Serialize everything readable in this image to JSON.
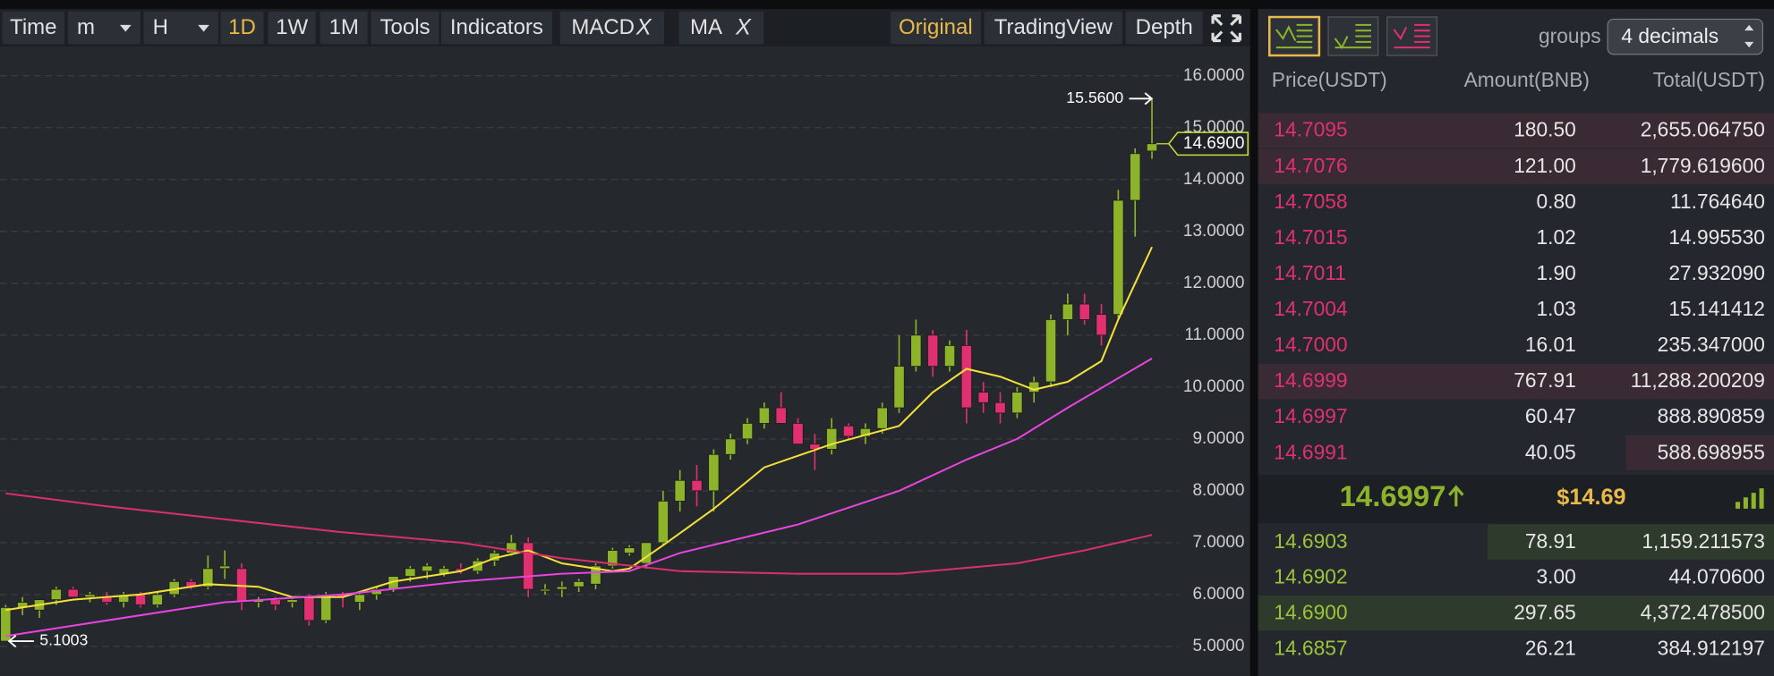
{
  "toolbar": {
    "buttons": [
      "Time",
      "m",
      "H",
      "1D",
      "1W",
      "1M",
      "Tools",
      "Indicators"
    ],
    "indicators": [
      "MACD",
      "MA"
    ],
    "close_mark": "X",
    "views": [
      "Original",
      "TradingView",
      "Depth"
    ]
  },
  "chart_data": {
    "type": "candlestick",
    "up_color": "#8db32b",
    "down_color": "#e0306f",
    "ohlc": [
      [
        5.1,
        5.8,
        5.1,
        5.75
      ],
      [
        5.75,
        5.95,
        5.6,
        5.85
      ],
      [
        5.7,
        5.9,
        5.55,
        5.9
      ],
      [
        5.9,
        6.15,
        5.8,
        6.1
      ],
      [
        6.1,
        6.15,
        5.95,
        5.95
      ],
      [
        5.95,
        6.05,
        5.85,
        6.0
      ],
      [
        5.95,
        6.05,
        5.8,
        5.85
      ],
      [
        5.85,
        6.05,
        5.75,
        6.0
      ],
      [
        6.0,
        6.05,
        5.75,
        5.8
      ],
      [
        5.8,
        6.05,
        5.75,
        6.0
      ],
      [
        6.0,
        6.3,
        5.95,
        6.25
      ],
      [
        6.25,
        6.3,
        6.1,
        6.15
      ],
      [
        6.15,
        6.75,
        6.1,
        6.5
      ],
      [
        6.5,
        6.85,
        6.3,
        6.55
      ],
      [
        6.5,
        6.6,
        5.7,
        5.85
      ],
      [
        5.85,
        5.95,
        5.75,
        5.9
      ],
      [
        5.9,
        5.95,
        5.7,
        5.8
      ],
      [
        5.85,
        5.95,
        5.75,
        5.9
      ],
      [
        5.95,
        6.0,
        5.4,
        5.5
      ],
      [
        5.5,
        6.05,
        5.45,
        6.0
      ],
      [
        6.0,
        6.05,
        5.75,
        5.95
      ],
      [
        5.85,
        6.05,
        5.7,
        6.0
      ],
      [
        6.0,
        6.15,
        5.9,
        6.1
      ],
      [
        6.1,
        6.35,
        6.05,
        6.35
      ],
      [
        6.35,
        6.55,
        6.25,
        6.5
      ],
      [
        6.45,
        6.6,
        6.3,
        6.55
      ],
      [
        6.4,
        6.55,
        6.35,
        6.5
      ],
      [
        6.5,
        6.6,
        6.4,
        6.45
      ],
      [
        6.45,
        6.7,
        6.4,
        6.65
      ],
      [
        6.65,
        6.85,
        6.55,
        6.8
      ],
      [
        6.8,
        7.15,
        6.75,
        7.0
      ],
      [
        7.0,
        7.1,
        5.95,
        6.1
      ],
      [
        6.1,
        6.2,
        6.0,
        6.1
      ],
      [
        6.1,
        6.25,
        5.95,
        6.15
      ],
      [
        6.15,
        6.3,
        6.05,
        6.25
      ],
      [
        6.2,
        6.6,
        6.1,
        6.55
      ],
      [
        6.55,
        6.9,
        6.5,
        6.85
      ],
      [
        6.8,
        6.95,
        6.75,
        6.9
      ],
      [
        6.6,
        7.0,
        6.5,
        7.0
      ],
      [
        7.0,
        8.0,
        6.95,
        7.8
      ],
      [
        7.8,
        8.4,
        7.6,
        8.2
      ],
      [
        8.2,
        8.5,
        7.7,
        8.0
      ],
      [
        8.0,
        8.8,
        7.6,
        8.7
      ],
      [
        8.7,
        9.1,
        8.6,
        9.0
      ],
      [
        9.0,
        9.4,
        8.9,
        9.3
      ],
      [
        9.3,
        9.7,
        9.2,
        9.6
      ],
      [
        9.6,
        9.9,
        9.3,
        9.3
      ],
      [
        9.3,
        9.4,
        8.9,
        8.9
      ],
      [
        8.9,
        9.1,
        8.4,
        8.8
      ],
      [
        8.8,
        9.4,
        8.7,
        9.2
      ],
      [
        9.25,
        9.3,
        9.0,
        9.05
      ],
      [
        9.05,
        9.3,
        8.9,
        9.2
      ],
      [
        9.2,
        9.7,
        9.1,
        9.6
      ],
      [
        9.6,
        11.0,
        9.5,
        10.4
      ],
      [
        10.4,
        11.3,
        10.3,
        11.0
      ],
      [
        11.0,
        11.1,
        10.2,
        10.4
      ],
      [
        10.4,
        10.9,
        10.3,
        10.8
      ],
      [
        10.8,
        11.1,
        9.3,
        9.6
      ],
      [
        9.9,
        10.1,
        9.5,
        9.7
      ],
      [
        9.7,
        9.9,
        9.3,
        9.5
      ],
      [
        9.5,
        10.0,
        9.4,
        9.9
      ],
      [
        9.9,
        10.2,
        9.7,
        10.1
      ],
      [
        10.1,
        11.4,
        10.0,
        11.3
      ],
      [
        11.3,
        11.8,
        11.0,
        11.6
      ],
      [
        11.6,
        11.8,
        11.2,
        11.3
      ],
      [
        11.4,
        11.6,
        10.8,
        11.0
      ],
      [
        11.4,
        13.8,
        11.3,
        13.6
      ],
      [
        13.6,
        14.6,
        12.9,
        14.5
      ],
      [
        14.55,
        15.56,
        14.4,
        14.69
      ]
    ],
    "series": [
      {
        "color": "#f3e03a",
        "x": [
          0,
          4,
          8,
          12,
          15,
          17,
          20,
          23,
          27,
          29,
          31,
          33,
          36,
          37,
          39,
          42,
          45,
          49,
          53,
          55,
          57,
          59,
          61,
          63,
          65,
          66,
          68
        ],
        "values": [
          5.7,
          5.9,
          6.0,
          6.2,
          6.15,
          5.95,
          5.95,
          6.25,
          6.45,
          6.7,
          6.85,
          6.6,
          6.45,
          6.5,
          6.95,
          7.65,
          8.45,
          8.9,
          9.25,
          9.9,
          10.35,
          10.2,
          9.95,
          10.1,
          10.5,
          11.3,
          12.7
        ]
      },
      {
        "color": "#e845e0",
        "x": [
          0,
          6,
          13,
          20,
          27,
          33,
          37,
          40,
          47,
          53,
          57,
          60,
          63,
          68
        ],
        "values": [
          5.2,
          5.5,
          5.85,
          6.0,
          6.25,
          6.4,
          6.45,
          6.8,
          7.35,
          8.0,
          8.6,
          9.0,
          9.6,
          10.55
        ]
      },
      {
        "color": "#d8306a",
        "x": [
          0,
          6,
          13,
          20,
          27,
          33,
          40,
          47,
          53,
          60,
          64,
          68
        ],
        "values": [
          7.95,
          7.7,
          7.45,
          7.2,
          7.0,
          6.7,
          6.45,
          6.4,
          6.4,
          6.6,
          6.85,
          7.15
        ]
      }
    ],
    "ylim": [
      4.43,
      16.48
    ],
    "yticks": [
      {
        "value": 16,
        "label": "16.0000"
      },
      {
        "value": 15,
        "label": "15.0000"
      },
      {
        "value": 14,
        "label": "14.0000"
      },
      {
        "value": 13,
        "label": "13.0000"
      },
      {
        "value": 12,
        "label": "12.0000"
      },
      {
        "value": 11,
        "label": "11.0000"
      },
      {
        "value": 10,
        "label": "10.0000"
      },
      {
        "value": 9,
        "label": "9.0000"
      },
      {
        "value": 8,
        "label": "8.0000"
      },
      {
        "value": 7,
        "label": "7.0000"
      },
      {
        "value": 6,
        "label": "6.0000"
      },
      {
        "value": 5,
        "label": "5.0000"
      }
    ],
    "grid": true,
    "annotations": {
      "high": {
        "value": 15.56,
        "label": "15.5600"
      },
      "last": {
        "value": 14.69,
        "label": "14.6900"
      },
      "low": {
        "value": 5.1003,
        "label": "5.1003"
      }
    }
  },
  "order_book": {
    "groups_label": "groups",
    "groups_value": "4 decimals",
    "columns": [
      "Price(USDT)",
      "Amount(BNB)",
      "Total(USDT)"
    ],
    "asks": [
      [
        "14.7095",
        "180.50",
        "2,655.064750"
      ],
      [
        "14.7076",
        "121.00",
        "1,779.619600"
      ],
      [
        "14.7058",
        "0.80",
        "11.764640"
      ],
      [
        "14.7015",
        "1.02",
        "14.995530"
      ],
      [
        "14.7011",
        "1.90",
        "27.932090"
      ],
      [
        "14.7004",
        "1.03",
        "15.141412"
      ],
      [
        "14.7000",
        "16.01",
        "235.347000"
      ],
      [
        "14.6999",
        "767.91",
        "11,288.200209"
      ],
      [
        "14.6997",
        "60.47",
        "888.890859"
      ],
      [
        "14.6991",
        "40.05",
        "588.698955"
      ]
    ],
    "last_price": "14.6997",
    "last_price_usd": "$14.69",
    "bids": [
      [
        "14.6903",
        "78.91",
        "1,159.211573"
      ],
      [
        "14.6902",
        "3.00",
        "44.070600"
      ],
      [
        "14.6900",
        "297.65",
        "4,372.478500"
      ],
      [
        "14.6857",
        "26.21",
        "384.912197"
      ]
    ]
  }
}
